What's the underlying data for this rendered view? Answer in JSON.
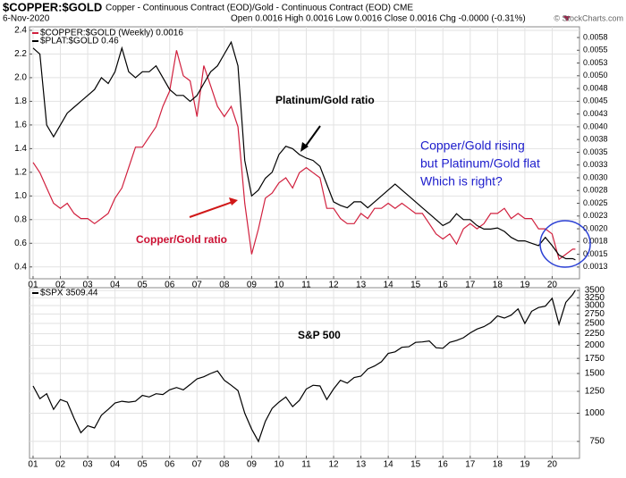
{
  "header": {
    "symbol": "$COPPER:$GOLD",
    "description": "Copper - Continuous Contract (EOD)/Gold - Continuous Contract (EOD) CME",
    "date": "6-Nov-2020",
    "quote": "Open 0.0016 High 0.0016 Low 0.0016 Close 0.0016 Chg -0.0000 (-0.31%)",
    "watermark": "© StockCharts.com"
  },
  "annotations": [
    "Platinum/Gold ratio",
    "Copper/Gold rising",
    "but Platinum/Gold flat",
    "Which is right?",
    "Copper/Gold ratio",
    "S&P 500"
  ],
  "chart_data": [
    {
      "type": "line",
      "grid": true,
      "x": [
        2001,
        2001.25,
        2001.5,
        2001.75,
        2002,
        2002.25,
        2002.5,
        2002.75,
        2003,
        2003.25,
        2003.5,
        2003.75,
        2004,
        2004.25,
        2004.5,
        2004.75,
        2005,
        2005.25,
        2005.5,
        2005.75,
        2006,
        2006.25,
        2006.5,
        2006.75,
        2007,
        2007.25,
        2007.5,
        2007.75,
        2008,
        2008.25,
        2008.5,
        2008.75,
        2009,
        2009.25,
        2009.5,
        2009.75,
        2010,
        2010.25,
        2010.5,
        2010.75,
        2011,
        2011.25,
        2011.5,
        2011.75,
        2012,
        2012.25,
        2012.5,
        2012.75,
        2013,
        2013.25,
        2013.5,
        2013.75,
        2014,
        2014.25,
        2014.5,
        2014.75,
        2015,
        2015.25,
        2015.5,
        2015.75,
        2016,
        2016.25,
        2016.5,
        2016.75,
        2017,
        2017.25,
        2017.5,
        2017.75,
        2018,
        2018.25,
        2018.5,
        2018.75,
        2019,
        2019.25,
        2019.5,
        2019.75,
        2020,
        2020.25,
        2020.5,
        2020.75,
        2020.85
      ],
      "xlim": [
        2000.87,
        2021.0
      ],
      "xticks": [
        {
          "value": 2001,
          "label": "01"
        },
        {
          "value": 2002,
          "label": "02"
        },
        {
          "value": 2003,
          "label": "03"
        },
        {
          "value": 2004,
          "label": "04"
        },
        {
          "value": 2005,
          "label": "05"
        },
        {
          "value": 2006,
          "label": "06"
        },
        {
          "value": 2007,
          "label": "07"
        },
        {
          "value": 2008,
          "label": "08"
        },
        {
          "value": 2009,
          "label": "09"
        },
        {
          "value": 2010,
          "label": "10"
        },
        {
          "value": 2011,
          "label": "11"
        },
        {
          "value": 2012,
          "label": "12"
        },
        {
          "value": 2013,
          "label": "13"
        },
        {
          "value": 2014,
          "label": "14"
        },
        {
          "value": 2015,
          "label": "15"
        },
        {
          "value": 2016,
          "label": "16"
        },
        {
          "value": 2017,
          "label": "17"
        },
        {
          "value": 2018,
          "label": "18"
        },
        {
          "value": 2019,
          "label": "19"
        },
        {
          "value": 2020,
          "label": "20"
        }
      ],
      "ylim": [
        0.3,
        2.43
      ],
      "yticks": [
        0.4,
        0.6,
        0.8,
        {
          "value": 1,
          "label": "1.0"
        },
        1.2,
        1.4,
        1.6,
        1.8,
        {
          "value": 2,
          "label": "2.0"
        },
        2.2,
        2.4
      ],
      "y2lim": [
        0.00102,
        0.00596
      ],
      "y2ticks": [
        {
          "value": 0.00125,
          "label": "0.0013"
        },
        0.0015,
        {
          "value": 0.00175,
          "label": "0.0018"
        },
        {
          "value": 0.002,
          "label": "0.0020"
        },
        {
          "value": 0.00225,
          "label": "0.0023"
        },
        0.0025,
        {
          "value": 0.00275,
          "label": "0.0028"
        },
        {
          "value": 0.003,
          "label": "0.0030"
        },
        {
          "value": 0.00325,
          "label": "0.0033"
        },
        0.0035,
        {
          "value": 0.00375,
          "label": "0.0038"
        },
        {
          "value": 0.004,
          "label": "0.0040"
        },
        {
          "value": 0.00425,
          "label": "0.0043"
        },
        0.0045,
        {
          "value": 0.00475,
          "label": "0.0048"
        },
        {
          "value": 0.005,
          "label": "0.0050"
        },
        {
          "value": 0.00525,
          "label": "0.0053"
        },
        0.0055,
        {
          "value": 0.00575,
          "label": "0.0058"
        }
      ],
      "series": [
        {
          "name": "$COPPER:$GOLD (Weekly) 0.0016",
          "color": "#d1203e",
          "axis": "y2",
          "values": [
            0.0033,
            0.0031,
            0.0028,
            0.0025,
            0.0024,
            0.0025,
            0.0023,
            0.0022,
            0.0022,
            0.0021,
            0.0022,
            0.0023,
            0.0026,
            0.0028,
            0.0032,
            0.0036,
            0.0036,
            0.0038,
            0.004,
            0.0044,
            0.0047,
            0.0055,
            0.005,
            0.0049,
            0.0042,
            0.0052,
            0.0048,
            0.0044,
            0.0042,
            0.0044,
            0.004,
            0.0025,
            0.0015,
            0.002,
            0.0026,
            0.0027,
            0.0029,
            0.003,
            0.0028,
            0.0031,
            0.0032,
            0.0031,
            0.003,
            0.0024,
            0.0024,
            0.0022,
            0.0021,
            0.0021,
            0.0023,
            0.0022,
            0.0024,
            0.0024,
            0.0025,
            0.0024,
            0.0025,
            0.0024,
            0.0023,
            0.0023,
            0.0021,
            0.0019,
            0.0018,
            0.0019,
            0.0017,
            0.002,
            0.0021,
            0.002,
            0.0021,
            0.0023,
            0.0023,
            0.0024,
            0.0022,
            0.0023,
            0.0022,
            0.0022,
            0.002,
            0.002,
            0.0019,
            0.0014,
            0.0015,
            0.0016,
            0.0016
          ]
        },
        {
          "name": "$PLAT:$GOLD 0.46",
          "color": "#000000",
          "values": [
            2.25,
            2.2,
            1.6,
            1.5,
            1.6,
            1.7,
            1.75,
            1.8,
            1.85,
            1.9,
            2.0,
            1.95,
            2.05,
            2.25,
            2.05,
            2.0,
            2.05,
            2.05,
            2.1,
            2.0,
            1.9,
            1.85,
            1.85,
            1.8,
            1.85,
            1.95,
            2.05,
            2.1,
            2.2,
            2.3,
            2.1,
            1.3,
            1.0,
            1.05,
            1.15,
            1.2,
            1.35,
            1.42,
            1.4,
            1.35,
            1.32,
            1.3,
            1.25,
            1.1,
            0.95,
            0.92,
            0.9,
            0.95,
            0.95,
            0.9,
            0.95,
            1.0,
            1.05,
            1.1,
            1.05,
            1.0,
            0.95,
            0.9,
            0.85,
            0.8,
            0.75,
            0.78,
            0.85,
            0.8,
            0.8,
            0.75,
            0.72,
            0.72,
            0.73,
            0.7,
            0.65,
            0.62,
            0.62,
            0.6,
            0.58,
            0.65,
            0.58,
            0.5,
            0.47,
            0.47,
            0.46
          ]
        }
      ]
    },
    {
      "type": "line",
      "grid": true,
      "log_scale": true,
      "x": [
        2001,
        2001.25,
        2001.5,
        2001.75,
        2002,
        2002.25,
        2002.5,
        2002.75,
        2003,
        2003.25,
        2003.5,
        2003.75,
        2004,
        2004.25,
        2004.5,
        2004.75,
        2005,
        2005.25,
        2005.5,
        2005.75,
        2006,
        2006.25,
        2006.5,
        2006.75,
        2007,
        2007.25,
        2007.5,
        2007.75,
        2008,
        2008.25,
        2008.5,
        2008.75,
        2009,
        2009.25,
        2009.5,
        2009.75,
        2010,
        2010.25,
        2010.5,
        2010.75,
        2011,
        2011.25,
        2011.5,
        2011.75,
        2012,
        2012.25,
        2012.5,
        2012.75,
        2013,
        2013.25,
        2013.5,
        2013.75,
        2014,
        2014.25,
        2014.5,
        2014.75,
        2015,
        2015.25,
        2015.5,
        2015.75,
        2016,
        2016.25,
        2016.5,
        2016.75,
        2017,
        2017.25,
        2017.5,
        2017.75,
        2018,
        2018.25,
        2018.5,
        2018.75,
        2019,
        2019.25,
        2019.5,
        2019.75,
        2020,
        2020.25,
        2020.5,
        2020.75,
        2020.85
      ],
      "xlim": [
        2000.87,
        2021.0
      ],
      "xticks": [
        {
          "value": 2001,
          "label": "01"
        },
        {
          "value": 2002,
          "label": "02"
        },
        {
          "value": 2003,
          "label": "03"
        },
        {
          "value": 2004,
          "label": "04"
        },
        {
          "value": 2005,
          "label": "05"
        },
        {
          "value": 2006,
          "label": "06"
        },
        {
          "value": 2007,
          "label": "07"
        },
        {
          "value": 2008,
          "label": "08"
        },
        {
          "value": 2009,
          "label": "09"
        },
        {
          "value": 2010,
          "label": "10"
        },
        {
          "value": 2011,
          "label": "11"
        },
        {
          "value": 2012,
          "label": "12"
        },
        {
          "value": 2013,
          "label": "13"
        },
        {
          "value": 2014,
          "label": "14"
        },
        {
          "value": 2015,
          "label": "15"
        },
        {
          "value": 2016,
          "label": "16"
        },
        {
          "value": 2017,
          "label": "17"
        },
        {
          "value": 2018,
          "label": "18"
        },
        {
          "value": 2019,
          "label": "19"
        },
        {
          "value": 2020,
          "label": "20"
        }
      ],
      "ylim": [
        631,
        3600
      ],
      "yticks": [
        750,
        1000,
        1250,
        1500,
        1750,
        2000,
        2250,
        2500,
        2750,
        3000,
        3250,
        3500
      ],
      "series": [
        {
          "name": "$SPX 3509.44",
          "color": "#000000",
          "values": [
            1320,
            1160,
            1220,
            1040,
            1150,
            1120,
            950,
            820,
            880,
            860,
            980,
            1040,
            1110,
            1130,
            1120,
            1130,
            1200,
            1180,
            1220,
            1210,
            1270,
            1300,
            1270,
            1340,
            1420,
            1450,
            1500,
            1540,
            1400,
            1330,
            1260,
            1000,
            850,
            750,
            920,
            1050,
            1120,
            1180,
            1070,
            1140,
            1280,
            1330,
            1320,
            1150,
            1280,
            1400,
            1360,
            1440,
            1460,
            1570,
            1620,
            1690,
            1840,
            1870,
            1960,
            1970,
            2060,
            2070,
            2090,
            1950,
            1940,
            2060,
            2100,
            2160,
            2270,
            2360,
            2420,
            2520,
            2700,
            2640,
            2720,
            2900,
            2500,
            2830,
            2940,
            2980,
            3230,
            2480,
            3100,
            3360,
            3509.44
          ]
        }
      ]
    }
  ]
}
